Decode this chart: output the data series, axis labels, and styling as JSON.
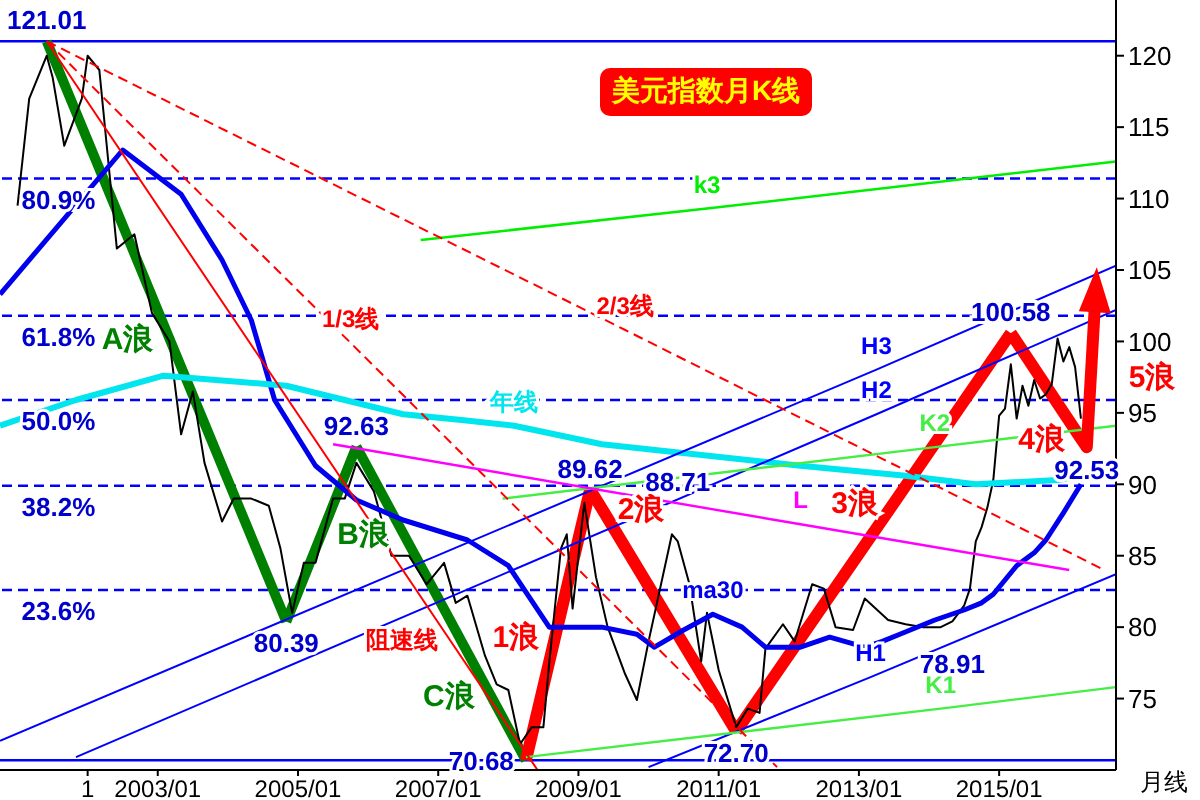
{
  "chart_data": {
    "type": "line",
    "title": "美元指数月K线",
    "xlabel": "月线",
    "xlim": [
      "2000-10",
      "2016-09"
    ],
    "xticks": [
      {
        "value": "2002-01",
        "label": "1"
      },
      {
        "value": "2003-01",
        "label": "2003/01"
      },
      {
        "value": "2005-01",
        "label": "2005/01"
      },
      {
        "value": "2007-01",
        "label": "2007/01"
      },
      {
        "value": "2009-01",
        "label": "2009/01"
      },
      {
        "value": "2011-01",
        "label": "2011/01"
      },
      {
        "value": "2013-01",
        "label": "2013/01"
      },
      {
        "value": "2015-01",
        "label": "2015/01"
      }
    ],
    "ylim": [
      70,
      123.9
    ],
    "yticks": [
      75,
      80,
      85,
      90,
      95,
      100,
      105,
      110,
      115,
      120
    ],
    "series": [
      {
        "color": "#000000",
        "x": [
          "2001-01",
          "2001-03",
          "2001-06",
          "2001-07",
          "2001-09",
          "2001-12",
          "2002-01",
          "2002-03",
          "2002-06",
          "2002-09",
          "2002-12",
          "2003-03",
          "2003-05",
          "2003-07",
          "2003-09",
          "2003-12",
          "2004-02",
          "2004-05",
          "2004-08",
          "2004-10",
          "2004-12",
          "2005-02",
          "2005-04",
          "2005-07",
          "2005-09",
          "2005-11",
          "2006-02",
          "2006-05",
          "2006-08",
          "2006-11",
          "2007-02",
          "2007-04",
          "2007-06",
          "2007-09",
          "2007-11",
          "2008-01",
          "2008-03",
          "2008-05",
          "2008-07",
          "2008-08",
          "2008-10",
          "2008-11",
          "2008-12",
          "2009-02",
          "2009-04",
          "2009-06",
          "2009-09",
          "2009-11",
          "2010-01",
          "2010-05",
          "2010-06",
          "2010-08",
          "2010-10",
          "2010-11",
          "2011-01",
          "2011-04",
          "2011-06",
          "2011-08",
          "2011-09",
          "2011-12",
          "2012-02",
          "2012-05",
          "2012-07",
          "2012-09",
          "2012-12",
          "2013-02",
          "2013-06",
          "2013-09",
          "2013-12",
          "2014-03",
          "2014-05",
          "2014-07",
          "2014-08",
          "2014-09",
          "2014-10",
          "2014-11",
          "2014-12",
          "2015-01",
          "2015-02",
          "2015-03",
          "2015-04",
          "2015-05",
          "2015-06",
          "2015-07",
          "2015-08",
          "2015-09",
          "2015-10",
          "2015-11",
          "2015-12",
          "2016-01",
          "2016-02",
          "2016-03"
        ],
        "values": [
          109.5,
          117,
          120,
          118.5,
          113.7,
          117,
          120,
          119,
          106.5,
          107.5,
          102,
          100,
          93.5,
          96.5,
          91.5,
          87.4,
          89,
          89,
          88.5,
          85.5,
          81,
          84.5,
          84.5,
          89,
          89,
          91.5,
          89.5,
          85,
          85,
          83,
          84.5,
          81.7,
          82.2,
          78,
          76,
          75.6,
          71.8,
          73,
          73,
          77.5,
          85.5,
          86.5,
          81.3,
          88.7,
          83.5,
          80,
          76.7,
          74.9,
          79,
          86.5,
          86,
          83,
          77.6,
          81,
          77,
          73,
          74.3,
          74,
          78.5,
          80.2,
          79,
          83,
          82.7,
          80,
          79.8,
          82,
          80.5,
          80.2,
          80,
          80,
          80.4,
          81.5,
          82.7,
          86,
          87,
          88.4,
          90.3,
          94.8,
          95.3,
          98.4,
          94.6,
          96.9,
          95.5,
          97.3,
          96,
          96.3,
          97,
          100.2,
          98.6,
          99.6,
          98.2,
          94.6
        ]
      },
      {
        "name": "ma30",
        "color": "#0000ee",
        "x": [
          "2000-10",
          "2002-07",
          "2003-05",
          "2003-12",
          "2004-05",
          "2004-09",
          "2005-04",
          "2005-11",
          "2006-07",
          "2007-06",
          "2008-01",
          "2008-08",
          "2009-05",
          "2009-11",
          "2010-02",
          "2010-07",
          "2010-12",
          "2011-05",
          "2011-09",
          "2012-03",
          "2012-08",
          "2013-02",
          "2013-05",
          "2013-08",
          "2014-02",
          "2014-07",
          "2014-10",
          "2014-12",
          "2015-04",
          "2015-07",
          "2015-09",
          "2015-12",
          "2016-03"
        ],
        "values": [
          103.3,
          113.4,
          110.3,
          105.7,
          101.5,
          95.9,
          91.3,
          88.9,
          87.5,
          86.1,
          84.3,
          80,
          80,
          79.5,
          78.6,
          79.8,
          80.9,
          80,
          78.6,
          78.6,
          79.3,
          78.6,
          79,
          79.5,
          80.5,
          81.2,
          81.7,
          82.3,
          84.3,
          85.2,
          86.1,
          88,
          90
        ]
      },
      {
        "name": "年线",
        "color": "#00e5ee",
        "x": [
          "2000-10",
          "2001-11",
          "2003-02",
          "2004-11",
          "2006-07",
          "2007-05",
          "2008-02",
          "2009-05",
          "2012-03",
          "2013-09",
          "2014-09",
          "2015-11",
          "2016-04"
        ],
        "values": [
          94.1,
          95.9,
          97.6,
          96.9,
          94.9,
          94.5,
          94.1,
          92.8,
          91.3,
          90.6,
          90,
          90.3,
          90.6
        ]
      },
      {
        "name": "H3",
        "color": "#0000ff",
        "x": [
          "2000-10",
          "2013-04",
          "2016-09"
        ],
        "values": [
          72.05,
          98.03,
          105.3
        ]
      },
      {
        "name": "H2",
        "color": "#0000ff",
        "x": [
          "2001-11",
          "2013-04",
          "2016-09"
        ],
        "values": [
          70.9,
          94.9,
          102.2
        ]
      },
      {
        "name": "H1",
        "color": "#0000ff",
        "x": [
          "2010-01",
          "2013-03",
          "2016-09"
        ],
        "values": [
          70.2,
          76.5,
          83.7
        ]
      },
      {
        "name": "k3",
        "color": "#00ee00",
        "x": [
          "2006-10",
          "2010-11",
          "2016-09"
        ],
        "values": [
          107.1,
          109.3,
          112.6
        ]
      },
      {
        "name": "K2",
        "color": "#44ee44",
        "x": [
          "2007-12",
          "2014-02",
          "2016-09"
        ],
        "values": [
          89,
          92.6,
          94.1
        ]
      },
      {
        "name": "K1",
        "color": "#44ee44",
        "x": [
          "2008-04",
          "2014-03",
          "2016-09"
        ],
        "values": [
          70.9,
          74.3,
          75.8
        ]
      },
      {
        "name": "1/3线",
        "color": "#ff0000",
        "line_style": "dashed",
        "x": [
          "2001-06",
          "2005-10",
          "2011-11"
        ],
        "values": [
          121.01,
          99.9,
          70.2
        ]
      },
      {
        "name": "2/3线",
        "color": "#ff0000",
        "line_style": "dashed",
        "x": [
          "2001-06",
          "2009-09",
          "2016-07"
        ],
        "values": [
          121.01,
          100.8,
          84
        ]
      },
      {
        "name": "阻速线",
        "color": "#ff0000",
        "x": [
          "2001-06",
          "2007-03",
          "2008-06"
        ],
        "values": [
          121.01,
          79.1,
          70
        ]
      },
      {
        "name": "L",
        "color": "#ff00ff",
        "x": [
          "2005-07",
          "2012-03",
          "2016-01"
        ],
        "values": [
          92.8,
          87.2,
          84
        ]
      },
      {
        "name": "A浪",
        "color": "#008000",
        "x": [
          "2001-06",
          "2003-03",
          "2004-11"
        ],
        "values": [
          121.01,
          100.2,
          80.39
        ]
      },
      {
        "name": "B浪",
        "color": "#008000",
        "x": [
          "2004-11",
          "2005-05",
          "2005-11"
        ],
        "values": [
          80.39,
          86.5,
          92.63
        ]
      },
      {
        "name": "C浪",
        "color": "#008000",
        "x": [
          "2005-11",
          "2007-10",
          "2008-04"
        ],
        "values": [
          92.63,
          75.2,
          70.68
        ]
      },
      {
        "name": "1浪",
        "color": "#ff0000",
        "x": [
          "2008-04",
          "2008-09",
          "2009-03"
        ],
        "values": [
          70.68,
          79.3,
          89.62
        ]
      },
      {
        "name": "2浪",
        "color": "#ff0000",
        "x": [
          "2009-03",
          "2009-05",
          "2011-04"
        ],
        "values": [
          89.62,
          88.3,
          72.7
        ]
      },
      {
        "name": "3浪",
        "color": "#ff0000",
        "x": [
          "2011-04",
          "2013-07",
          "2015-03"
        ],
        "values": [
          72.7,
          88.7,
          100.58
        ]
      },
      {
        "name": "4浪",
        "color": "#ff0000",
        "x": [
          "2015-03",
          "2016-03",
          "2016-04"
        ],
        "values": [
          100.58,
          93.2,
          92.6
        ]
      }
    ],
    "ref_lines": [
      {
        "axis": "y",
        "value": 121.01,
        "color": "#0000ff",
        "line_style": "solid"
      },
      {
        "axis": "y",
        "value": 111.4,
        "color": "#0000ff",
        "line_style": "dashed"
      },
      {
        "axis": "y",
        "value": 101.8,
        "color": "#0000ff",
        "line_style": "dashed"
      },
      {
        "axis": "y",
        "value": 95.9,
        "color": "#0000ff",
        "line_style": "dashed"
      },
      {
        "axis": "y",
        "value": 89.9,
        "color": "#0000ff",
        "line_style": "dashed"
      },
      {
        "axis": "y",
        "value": 82.6,
        "color": "#0000ff",
        "line_style": "dashed"
      },
      {
        "axis": "y",
        "value": 70.68,
        "color": "#0000ff",
        "line_style": "solid"
      }
    ],
    "annotations": [
      {
        "text": "121.01",
        "x": "2001-06",
        "y": 121.01
      },
      {
        "text": "92.63",
        "x": "2005-11",
        "y": 92.63
      },
      {
        "text": "80.39",
        "x": "2004-11",
        "y": 80.39
      },
      {
        "text": "70.68",
        "x": "2008-04",
        "y": 70.68
      },
      {
        "text": "89.62",
        "x": "2009-03",
        "y": 89.62
      },
      {
        "text": "88.71",
        "x": "2010-06",
        "y": 88.71
      },
      {
        "text": "72.70",
        "x": "2011-04",
        "y": 72.7
      },
      {
        "text": "78.91",
        "x": "2014-05",
        "y": 78.91
      },
      {
        "text": "100.58",
        "x": "2015-03",
        "y": 100.58
      },
      {
        "text": "92.53",
        "x": "2016-04",
        "y": 92.53
      },
      {
        "text": "80.9%",
        "x": "2001-08",
        "y": 111.4
      },
      {
        "text": "61.8%",
        "x": "2001-08",
        "y": 101.8
      },
      {
        "text": "50.0%",
        "x": "2001-08",
        "y": 95.9
      },
      {
        "text": "38.2%",
        "x": "2001-08",
        "y": 89.9
      },
      {
        "text": "23.6%",
        "x": "2001-08",
        "y": 82.6
      },
      "5浪"
    ]
  }
}
